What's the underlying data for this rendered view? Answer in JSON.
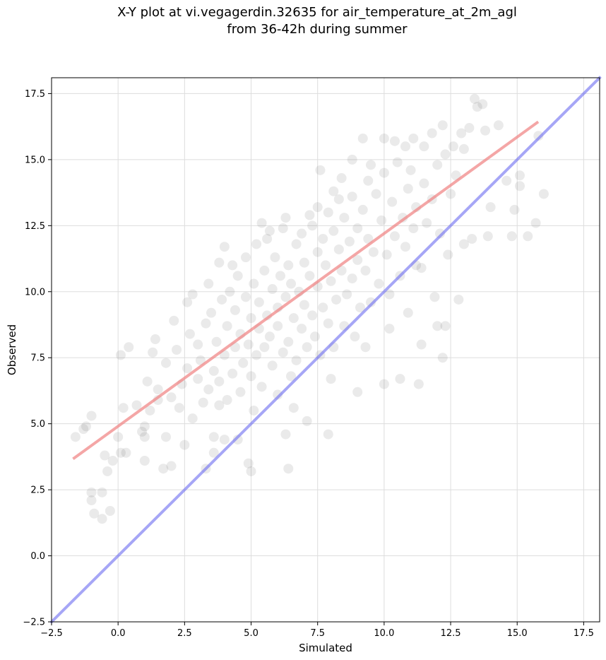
{
  "chart_data": {
    "type": "scatter",
    "title": "X-Y plot at vi.vegagerdin.32635 for air_temperature_at_2m_agl\nfrom 36-42h during summer",
    "xlabel": "Simulated",
    "ylabel": "Observed",
    "xlim": [
      -2.5,
      18.1
    ],
    "ylim": [
      -2.5,
      18.1
    ],
    "xticks": [
      "−2.5",
      "0.0",
      "2.5",
      "5.0",
      "7.5",
      "10.0",
      "12.5",
      "15.0",
      "17.5"
    ],
    "yticks": [
      "−2.5",
      "0.0",
      "2.5",
      "5.0",
      "7.5",
      "10.0",
      "12.5",
      "15.0",
      "17.5"
    ],
    "tick_values": [
      -2.5,
      0.0,
      2.5,
      5.0,
      7.5,
      10.0,
      12.5,
      15.0,
      17.5
    ],
    "grid": true,
    "point_color": "#555555",
    "point_alpha": 0.12,
    "series": [
      {
        "kind": "points",
        "points": [
          [
            -1.6,
            4.5
          ],
          [
            -1.3,
            4.8
          ],
          [
            -1.2,
            4.9
          ],
          [
            -1.0,
            5.3
          ],
          [
            -1.0,
            2.4
          ],
          [
            -1.0,
            2.1
          ],
          [
            -0.9,
            1.6
          ],
          [
            -0.6,
            1.4
          ],
          [
            -0.6,
            2.4
          ],
          [
            -0.5,
            3.8
          ],
          [
            -0.4,
            3.2
          ],
          [
            -0.3,
            1.7
          ],
          [
            -0.2,
            3.6
          ],
          [
            0.0,
            4.5
          ],
          [
            0.1,
            3.9
          ],
          [
            0.2,
            5.6
          ],
          [
            0.1,
            7.6
          ],
          [
            0.4,
            7.9
          ],
          [
            0.3,
            3.9
          ],
          [
            0.7,
            5.7
          ],
          [
            0.9,
            4.7
          ],
          [
            1.0,
            4.5
          ],
          [
            1.0,
            3.6
          ],
          [
            1.1,
            6.6
          ],
          [
            1.3,
            7.7
          ],
          [
            1.4,
            8.2
          ],
          [
            1.5,
            5.9
          ],
          [
            1.7,
            3.3
          ],
          [
            1.8,
            4.5
          ],
          [
            2.0,
            3.4
          ],
          [
            2.1,
            8.9
          ],
          [
            2.5,
            4.2
          ],
          [
            2.6,
            9.6
          ],
          [
            2.8,
            9.9
          ],
          [
            3.3,
            3.3
          ],
          [
            3.4,
            10.3
          ],
          [
            3.6,
            4.5
          ],
          [
            3.6,
            3.9
          ],
          [
            3.8,
            5.7
          ],
          [
            3.8,
            11.1
          ],
          [
            4.0,
            4.4
          ],
          [
            4.0,
            11.7
          ],
          [
            4.3,
            11.0
          ],
          [
            4.5,
            4.4
          ],
          [
            4.9,
            3.5
          ],
          [
            5.0,
            3.2
          ],
          [
            5.1,
            5.5
          ],
          [
            5.4,
            12.6
          ],
          [
            5.7,
            12.3
          ],
          [
            6.0,
            6.1
          ],
          [
            6.3,
            4.6
          ],
          [
            6.4,
            3.3
          ],
          [
            6.3,
            12.8
          ],
          [
            6.6,
            5.6
          ],
          [
            7.1,
            5.1
          ],
          [
            7.2,
            12.9
          ],
          [
            7.5,
            13.2
          ],
          [
            7.6,
            14.6
          ],
          [
            7.9,
            4.6
          ],
          [
            8.0,
            6.7
          ],
          [
            8.1,
            13.8
          ],
          [
            8.4,
            14.3
          ],
          [
            8.8,
            15.0
          ],
          [
            9.0,
            6.2
          ],
          [
            9.2,
            15.8
          ],
          [
            9.3,
            7.9
          ],
          [
            9.5,
            14.8
          ],
          [
            10.0,
            6.5
          ],
          [
            10.0,
            15.8
          ],
          [
            10.2,
            8.6
          ],
          [
            10.4,
            15.7
          ],
          [
            10.6,
            6.7
          ],
          [
            10.8,
            15.5
          ],
          [
            10.9,
            9.2
          ],
          [
            11.1,
            15.8
          ],
          [
            11.2,
            11.0
          ],
          [
            11.3,
            6.5
          ],
          [
            11.4,
            8.0
          ],
          [
            11.5,
            15.5
          ],
          [
            11.8,
            16.0
          ],
          [
            11.9,
            9.8
          ],
          [
            12.0,
            8.7
          ],
          [
            12.2,
            16.3
          ],
          [
            12.3,
            8.7
          ],
          [
            12.4,
            11.4
          ],
          [
            12.2,
            7.5
          ],
          [
            12.6,
            15.5
          ],
          [
            12.8,
            9.7
          ],
          [
            12.9,
            16.0
          ],
          [
            13.0,
            11.8
          ],
          [
            13.2,
            16.2
          ],
          [
            13.3,
            12.0
          ],
          [
            13.4,
            17.3
          ],
          [
            13.5,
            17.0
          ],
          [
            13.7,
            17.1
          ],
          [
            13.8,
            16.1
          ],
          [
            13.9,
            12.1
          ],
          [
            14.0,
            13.2
          ],
          [
            14.3,
            16.3
          ],
          [
            14.6,
            14.2
          ],
          [
            14.8,
            12.1
          ],
          [
            14.9,
            13.1
          ],
          [
            15.1,
            14.4
          ],
          [
            15.1,
            14.0
          ],
          [
            15.4,
            12.1
          ],
          [
            15.7,
            12.6
          ],
          [
            15.8,
            15.9
          ],
          [
            16.0,
            13.7
          ],
          [
            1.0,
            4.9
          ],
          [
            1.2,
            5.5
          ],
          [
            1.5,
            6.3
          ],
          [
            1.8,
            7.3
          ],
          [
            2.0,
            6.0
          ],
          [
            2.2,
            7.8
          ],
          [
            2.3,
            5.6
          ],
          [
            2.4,
            6.5
          ],
          [
            2.6,
            7.1
          ],
          [
            2.7,
            8.4
          ],
          [
            2.8,
            5.2
          ],
          [
            3.0,
            6.7
          ],
          [
            3.0,
            8.0
          ],
          [
            3.1,
            7.4
          ],
          [
            3.2,
            5.8
          ],
          [
            3.3,
            8.8
          ],
          [
            3.4,
            6.3
          ],
          [
            3.5,
            9.2
          ],
          [
            3.6,
            7.0
          ],
          [
            3.7,
            8.1
          ],
          [
            3.8,
            6.6
          ],
          [
            3.9,
            9.7
          ],
          [
            4.0,
            7.6
          ],
          [
            4.1,
            5.9
          ],
          [
            4.1,
            8.7
          ],
          [
            4.2,
            10.0
          ],
          [
            4.3,
            6.9
          ],
          [
            4.4,
            7.9
          ],
          [
            4.4,
            9.3
          ],
          [
            4.5,
            10.6
          ],
          [
            4.6,
            6.2
          ],
          [
            4.6,
            8.4
          ],
          [
            4.7,
            7.3
          ],
          [
            4.8,
            9.8
          ],
          [
            4.8,
            11.3
          ],
          [
            4.9,
            8.0
          ],
          [
            5.0,
            6.8
          ],
          [
            5.0,
            9.0
          ],
          [
            5.1,
            10.3
          ],
          [
            5.2,
            7.6
          ],
          [
            5.2,
            11.8
          ],
          [
            5.3,
            8.6
          ],
          [
            5.3,
            9.6
          ],
          [
            5.4,
            6.4
          ],
          [
            5.5,
            10.8
          ],
          [
            5.5,
            7.9
          ],
          [
            5.6,
            9.1
          ],
          [
            5.6,
            12.0
          ],
          [
            5.7,
            8.3
          ],
          [
            5.8,
            10.1
          ],
          [
            5.8,
            7.2
          ],
          [
            5.9,
            11.3
          ],
          [
            6.0,
            9.4
          ],
          [
            6.0,
            8.7
          ],
          [
            6.1,
            10.6
          ],
          [
            6.2,
            7.7
          ],
          [
            6.2,
            12.4
          ],
          [
            6.3,
            9.8
          ],
          [
            6.4,
            8.1
          ],
          [
            6.4,
            11.0
          ],
          [
            6.5,
            6.8
          ],
          [
            6.5,
            10.3
          ],
          [
            6.6,
            9.0
          ],
          [
            6.7,
            11.8
          ],
          [
            6.7,
            7.4
          ],
          [
            6.8,
            10.0
          ],
          [
            6.9,
            8.6
          ],
          [
            6.9,
            12.2
          ],
          [
            7.0,
            9.5
          ],
          [
            7.0,
            11.1
          ],
          [
            7.1,
            7.9
          ],
          [
            7.2,
            10.6
          ],
          [
            7.3,
            9.1
          ],
          [
            7.3,
            12.5
          ],
          [
            7.4,
            8.3
          ],
          [
            7.5,
            11.5
          ],
          [
            7.5,
            10.2
          ],
          [
            7.6,
            7.6
          ],
          [
            7.7,
            12.0
          ],
          [
            7.7,
            9.4
          ],
          [
            7.8,
            11.0
          ],
          [
            7.9,
            8.8
          ],
          [
            7.9,
            13.0
          ],
          [
            8.0,
            10.4
          ],
          [
            8.1,
            12.3
          ],
          [
            8.1,
            7.9
          ],
          [
            8.2,
            9.7
          ],
          [
            8.3,
            11.6
          ],
          [
            8.3,
            13.5
          ],
          [
            8.4,
            10.8
          ],
          [
            8.5,
            8.7
          ],
          [
            8.5,
            12.8
          ],
          [
            8.6,
            9.9
          ],
          [
            8.7,
            11.9
          ],
          [
            8.8,
            13.6
          ],
          [
            8.8,
            10.5
          ],
          [
            8.9,
            8.3
          ],
          [
            9.0,
            12.4
          ],
          [
            9.0,
            11.2
          ],
          [
            9.1,
            9.4
          ],
          [
            9.2,
            13.1
          ],
          [
            9.3,
            10.8
          ],
          [
            9.4,
            14.2
          ],
          [
            9.4,
            12.0
          ],
          [
            9.5,
            9.6
          ],
          [
            9.6,
            11.5
          ],
          [
            9.7,
            13.7
          ],
          [
            9.8,
            10.3
          ],
          [
            9.9,
            12.7
          ],
          [
            10.0,
            14.5
          ],
          [
            10.1,
            11.4
          ],
          [
            10.2,
            9.9
          ],
          [
            10.3,
            13.4
          ],
          [
            10.4,
            12.1
          ],
          [
            10.5,
            14.9
          ],
          [
            10.6,
            10.6
          ],
          [
            10.7,
            12.8
          ],
          [
            10.8,
            11.7
          ],
          [
            10.9,
            13.9
          ],
          [
            11.0,
            14.6
          ],
          [
            11.1,
            12.4
          ],
          [
            11.2,
            13.2
          ],
          [
            11.4,
            10.9
          ],
          [
            11.5,
            14.1
          ],
          [
            11.6,
            12.6
          ],
          [
            11.8,
            13.5
          ],
          [
            12.0,
            14.8
          ],
          [
            12.1,
            12.2
          ],
          [
            12.3,
            15.2
          ],
          [
            12.5,
            13.7
          ],
          [
            12.7,
            14.4
          ],
          [
            13.0,
            15.4
          ]
        ]
      },
      {
        "kind": "fit_line",
        "color": "#f08080",
        "alpha": 0.7,
        "x": [
          -1.65,
          15.75
        ],
        "y": [
          3.7,
          16.4
        ]
      },
      {
        "kind": "identity_line",
        "color": "#6b6bf0",
        "alpha": 0.6,
        "x": [
          -2.5,
          18.1
        ],
        "y": [
          -2.5,
          18.1
        ]
      }
    ]
  }
}
